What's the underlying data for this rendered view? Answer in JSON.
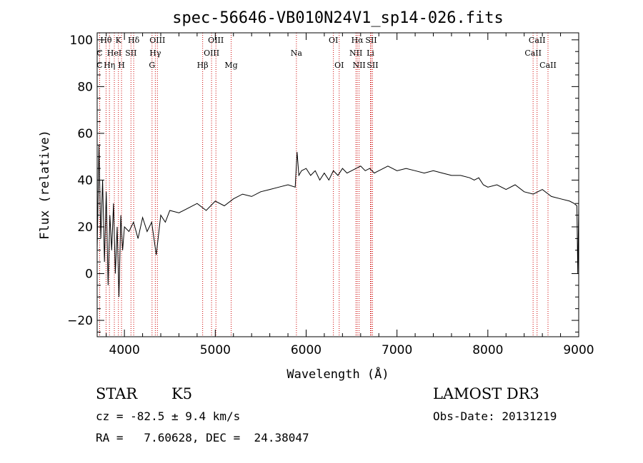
{
  "chart_data": {
    "type": "line",
    "title": "spec-56646-VB010N24V1_sp14-026.fits",
    "xlabel": "Wavelength (Å)",
    "ylabel": "Flux (relative)",
    "xlim": [
      3700,
      9000
    ],
    "ylim": [
      -27,
      103
    ],
    "xticks": [
      4000,
      5000,
      6000,
      7000,
      8000,
      9000
    ],
    "yticks": [
      -20,
      0,
      20,
      40,
      60,
      80,
      100
    ],
    "line_color": "#000000",
    "marker_color": "#cc0000",
    "series": [
      {
        "x": [
          3700,
          3720,
          3740,
          3760,
          3780,
          3800,
          3820,
          3840,
          3860,
          3880,
          3900,
          3920,
          3940,
          3960,
          3980,
          4000,
          4050,
          4100,
          4150,
          4200,
          4250,
          4300,
          4350,
          4400,
          4450,
          4500,
          4600,
          4700,
          4800,
          4900,
          5000,
          5100,
          5200,
          5300,
          5400,
          5500,
          5600,
          5700,
          5800,
          5880,
          5900,
          5920,
          5950,
          6000,
          6050,
          6100,
          6150,
          6200,
          6250,
          6300,
          6350,
          6400,
          6450,
          6500,
          6550,
          6600,
          6650,
          6700,
          6750,
          6800,
          6850,
          6900,
          6950,
          7000,
          7100,
          7200,
          7300,
          7400,
          7500,
          7600,
          7700,
          7800,
          7850,
          7900,
          7950,
          8000,
          8100,
          8200,
          8300,
          8400,
          8500,
          8600,
          8700,
          8800,
          8900,
          8950,
          8980,
          8990,
          9000
        ],
        "values": [
          10,
          55,
          15,
          40,
          5,
          35,
          -5,
          25,
          10,
          30,
          0,
          20,
          -10,
          25,
          10,
          20,
          18,
          22,
          15,
          24,
          18,
          22,
          8,
          25,
          22,
          27,
          26,
          28,
          30,
          27,
          31,
          29,
          32,
          34,
          33,
          35,
          36,
          37,
          38,
          37,
          52,
          42,
          44,
          45,
          42,
          44,
          40,
          43,
          40,
          44,
          42,
          45,
          43,
          44,
          45,
          46,
          44,
          45,
          43,
          44,
          45,
          46,
          45,
          44,
          45,
          44,
          43,
          44,
          43,
          42,
          42,
          41,
          40,
          41,
          38,
          37,
          38,
          36,
          38,
          35,
          34,
          36,
          33,
          32,
          31,
          30,
          29,
          0,
          28
        ]
      }
    ],
    "spectral_lines": [
      {
        "label": "Hθ",
        "x": 3798,
        "row": 1
      },
      {
        "label": "K",
        "x": 3934,
        "row": 1
      },
      {
        "label": "Hδ",
        "x": 4102,
        "row": 1
      },
      {
        "label": "OIII",
        "x": 4363,
        "row": 1
      },
      {
        "label": "OIII",
        "x": 5007,
        "row": 1
      },
      {
        "label": "OI",
        "x": 6300,
        "row": 1
      },
      {
        "label": "Hα",
        "x": 6563,
        "row": 1
      },
      {
        "label": "SII",
        "x": 6716,
        "row": 1
      },
      {
        "label": "CaII",
        "x": 8542,
        "row": 1
      },
      {
        "label": "C",
        "x": 3727,
        "row": 2
      },
      {
        "label": "HeI",
        "x": 3889,
        "row": 2
      },
      {
        "label": "SII",
        "x": 4072,
        "row": 2
      },
      {
        "label": "Hγ",
        "x": 4340,
        "row": 2
      },
      {
        "label": "OIII",
        "x": 4959,
        "row": 2
      },
      {
        "label": "Na",
        "x": 5893,
        "row": 2
      },
      {
        "label": "NII",
        "x": 6548,
        "row": 2
      },
      {
        "label": "Li",
        "x": 6708,
        "row": 2
      },
      {
        "label": "CaII",
        "x": 8498,
        "row": 2
      },
      {
        "label": "C",
        "x": 3727,
        "row": 3
      },
      {
        "label": "Hη",
        "x": 3835,
        "row": 3
      },
      {
        "label": "H",
        "x": 3968,
        "row": 3
      },
      {
        "label": "G",
        "x": 4304,
        "row": 3
      },
      {
        "label": "Hβ",
        "x": 4861,
        "row": 3
      },
      {
        "label": "Mg",
        "x": 5175,
        "row": 3
      },
      {
        "label": "OI",
        "x": 6364,
        "row": 3
      },
      {
        "label": "NII",
        "x": 6583,
        "row": 3
      },
      {
        "label": "SII",
        "x": 6731,
        "row": 3
      },
      {
        "label": "CaII",
        "x": 8662,
        "row": 3
      }
    ]
  },
  "info": {
    "class_label": "STAR",
    "subclass": "K5",
    "survey": "LAMOST DR3",
    "cz": "cz = -82.5 ± 9.4 km/s",
    "obs_date": "Obs-Date: 20131219",
    "coords": "RA =   7.60628, DEC =  24.38047"
  }
}
